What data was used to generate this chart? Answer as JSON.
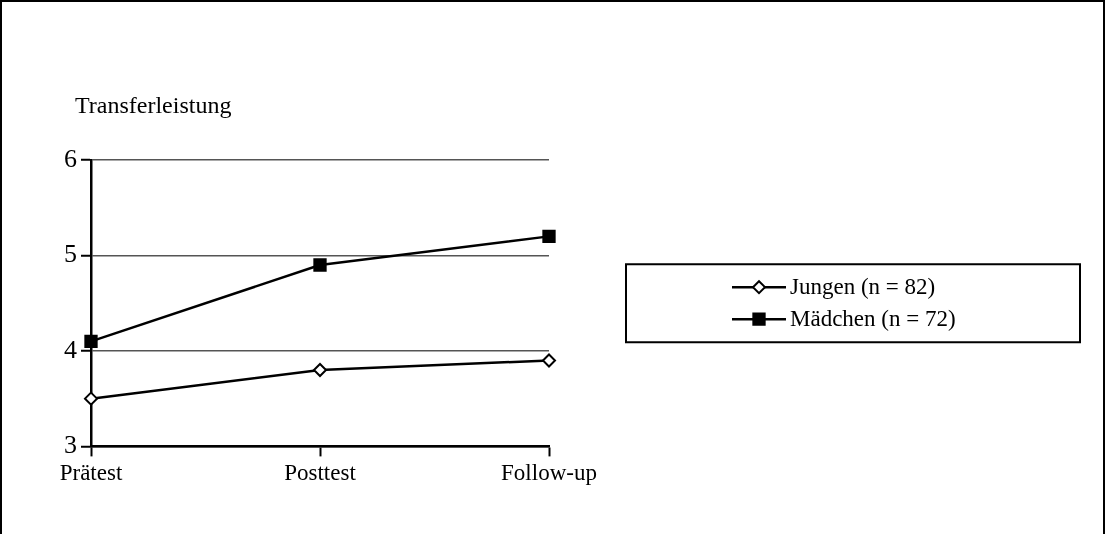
{
  "chart_data": {
    "type": "line",
    "ylabel": "Transferleistung",
    "categories": [
      "Prätest",
      "Posttest",
      "Follow-up"
    ],
    "series": [
      {
        "name": "Jungen (n = 82)",
        "color": "#000000",
        "marker": "diamond",
        "values": [
          3.5,
          3.8,
          3.9
        ]
      },
      {
        "name": "Mädchen (n = 72)",
        "color": "#000000",
        "marker": "square",
        "values": [
          4.1,
          4.9,
          5.2
        ]
      }
    ],
    "ylim": [
      3,
      6
    ],
    "yticks": [
      3,
      4,
      5,
      6
    ],
    "grid": "y",
    "legend": "right",
    "line_style": "solid"
  }
}
